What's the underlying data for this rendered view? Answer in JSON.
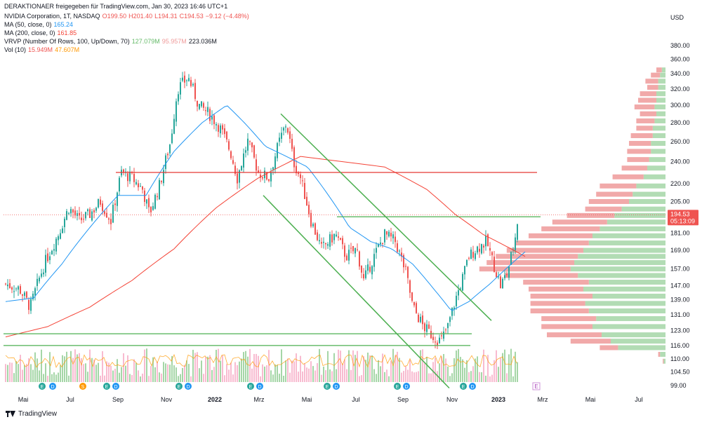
{
  "header": {
    "publisher": "DERAKTIONAER freigegeben für TradingView.com, Jan 30, 2023 16:46 UTC+1",
    "symbol": "NVIDIA Corporation, 1T, NASDAQ",
    "o": "O199.50",
    "h": "H201.40",
    "l": "L194.31",
    "c": "C194.53",
    "chg": "−9.12 (−4.48%)",
    "ma50_label": "MA (50, close, 0)",
    "ma50_val": "165.24",
    "ma200_label": "MA (200, close, 0)",
    "ma200_val": "161.85",
    "vrvp_label": "VRVP (Number Of Rows, 100, Up/Down, 70)",
    "vrvp_up": "127.079M",
    "vrvp_down": "95.957M",
    "vrvp_total": "223.036M",
    "vol_label": "Vol (10)",
    "vol_val": "15.949M",
    "vol_ma": "47.607M"
  },
  "price_tag": {
    "price": "194.53",
    "countdown": "05:13:09"
  },
  "currency": "USD",
  "footer": {
    "brand": "TradingView"
  },
  "colors": {
    "up": "#26a69a",
    "down": "#ef5350",
    "ma50": "#2196f3",
    "ma200": "#f44336",
    "trend": "#4caf50",
    "resist": "#e53935",
    "volup": "#a5d6a7",
    "voldown": "#f8bbd0"
  },
  "chart_data": {
    "type": "candlestick",
    "ylim": [
      95,
      385
    ],
    "yscale": "log",
    "yticks": [
      "99.00",
      "104.50",
      "110.00",
      "116.00",
      "123.00",
      "131.00",
      "139.00",
      "147.00",
      "157.00",
      "169.00",
      "181.00",
      "194.53",
      "205.00",
      "220.00",
      "240.00",
      "260.00",
      "280.00",
      "300.00",
      "320.00",
      "340.00",
      "360.00",
      "380.00"
    ],
    "xticks": [
      "Mai",
      "Jul",
      "Sep",
      "Nov",
      "2022",
      "Mrz",
      "Mai",
      "Jul",
      "Sep",
      "Nov",
      "2023",
      "Mrz",
      "Mai",
      "Jul"
    ],
    "close_anchors": [
      [
        0,
        148
      ],
      [
        20,
        145
      ],
      [
        35,
        135
      ],
      [
        55,
        160
      ],
      [
        75,
        180
      ],
      [
        90,
        200
      ],
      [
        105,
        190
      ],
      [
        120,
        195
      ],
      [
        135,
        205
      ],
      [
        150,
        190
      ],
      [
        165,
        230
      ],
      [
        180,
        225
      ],
      [
        195,
        215
      ],
      [
        205,
        195
      ],
      [
        220,
        220
      ],
      [
        235,
        260
      ],
      [
        245,
        320
      ],
      [
        260,
        335
      ],
      [
        275,
        300
      ],
      [
        290,
        290
      ],
      [
        305,
        275
      ],
      [
        320,
        250
      ],
      [
        330,
        225
      ],
      [
        345,
        260
      ],
      [
        360,
        230
      ],
      [
        375,
        225
      ],
      [
        390,
        260
      ],
      [
        400,
        280
      ],
      [
        410,
        240
      ],
      [
        420,
        225
      ],
      [
        435,
        190
      ],
      [
        450,
        170
      ],
      [
        470,
        180
      ],
      [
        485,
        165
      ],
      [
        500,
        170
      ],
      [
        510,
        150
      ],
      [
        525,
        165
      ],
      [
        540,
        180
      ],
      [
        555,
        175
      ],
      [
        570,
        155
      ],
      [
        580,
        135
      ],
      [
        595,
        125
      ],
      [
        610,
        120
      ],
      [
        620,
        118
      ],
      [
        630,
        125
      ],
      [
        640,
        138
      ],
      [
        650,
        150
      ],
      [
        660,
        165
      ],
      [
        670,
        170
      ],
      [
        685,
        175
      ],
      [
        695,
        160
      ],
      [
        705,
        147
      ],
      [
        715,
        155
      ],
      [
        725,
        175
      ],
      [
        732,
        200
      ],
      [
        738,
        194.53
      ]
    ],
    "ma50_anchors": [
      [
        0,
        138
      ],
      [
        40,
        140
      ],
      [
        80,
        160
      ],
      [
        120,
        185
      ],
      [
        160,
        210
      ],
      [
        200,
        210
      ],
      [
        240,
        250
      ],
      [
        280,
        280
      ],
      [
        315,
        300
      ],
      [
        340,
        280
      ],
      [
        370,
        255
      ],
      [
        400,
        245
      ],
      [
        430,
        235
      ],
      [
        460,
        210
      ],
      [
        490,
        185
      ],
      [
        520,
        175
      ],
      [
        550,
        170
      ],
      [
        580,
        160
      ],
      [
        610,
        145
      ],
      [
        635,
        133
      ],
      [
        660,
        138
      ],
      [
        690,
        148
      ],
      [
        715,
        158
      ],
      [
        740,
        168
      ]
    ],
    "ma200_anchors": [
      [
        0,
        120
      ],
      [
        60,
        125
      ],
      [
        120,
        135
      ],
      [
        180,
        150
      ],
      [
        240,
        170
      ],
      [
        300,
        200
      ],
      [
        360,
        225
      ],
      [
        420,
        245
      ],
      [
        480,
        240
      ],
      [
        540,
        235
      ],
      [
        600,
        215
      ],
      [
        640,
        195
      ],
      [
        680,
        180
      ],
      [
        720,
        170
      ],
      [
        740,
        165
      ]
    ],
    "resistance_lines": [
      {
        "y": 230,
        "x0": 165,
        "x1": 765
      },
      {
        "y": 193,
        "x0": 480,
        "x1": 770
      },
      {
        "y": 121.5,
        "x0": 5,
        "x1": 672
      },
      {
        "y": 116,
        "x0": 5,
        "x1": 670
      }
    ],
    "trend_lines": [
      {
        "x0": 400,
        "y0": 290,
        "x1": 700,
        "y1": 128
      },
      {
        "x0": 375,
        "y0": 210,
        "x1": 640,
        "y1": 98
      }
    ],
    "volume_profile": {
      "rows": [
        {
          "price": 345,
          "up": 0.02,
          "down": 0.03
        },
        {
          "price": 338,
          "up": 0.03,
          "down": 0.05
        },
        {
          "price": 330,
          "up": 0.04,
          "down": 0.07
        },
        {
          "price": 322,
          "up": 0.04,
          "down": 0.06
        },
        {
          "price": 314,
          "up": 0.05,
          "down": 0.09
        },
        {
          "price": 306,
          "up": 0.05,
          "down": 0.1
        },
        {
          "price": 298,
          "up": 0.06,
          "down": 0.11
        },
        {
          "price": 290,
          "up": 0.05,
          "down": 0.09
        },
        {
          "price": 282,
          "up": 0.06,
          "down": 0.1
        },
        {
          "price": 274,
          "up": 0.07,
          "down": 0.09
        },
        {
          "price": 266,
          "up": 0.07,
          "down": 0.12
        },
        {
          "price": 258,
          "up": 0.08,
          "down": 0.12
        },
        {
          "price": 250,
          "up": 0.08,
          "down": 0.13
        },
        {
          "price": 242,
          "up": 0.09,
          "down": 0.12
        },
        {
          "price": 234,
          "up": 0.1,
          "down": 0.14
        },
        {
          "price": 226,
          "up": 0.12,
          "down": 0.17
        },
        {
          "price": 218,
          "up": 0.16,
          "down": 0.2
        },
        {
          "price": 211,
          "up": 0.18,
          "down": 0.2
        },
        {
          "price": 205,
          "up": 0.2,
          "down": 0.22
        },
        {
          "price": 199,
          "up": 0.24,
          "down": 0.2
        },
        {
          "price": 194,
          "up": 0.28,
          "down": 0.26
        },
        {
          "price": 189,
          "up": 0.32,
          "down": 0.3
        },
        {
          "price": 184,
          "up": 0.36,
          "down": 0.32
        },
        {
          "price": 179,
          "up": 0.4,
          "down": 0.35
        },
        {
          "price": 174,
          "up": 0.42,
          "down": 0.4
        },
        {
          "price": 169,
          "up": 0.45,
          "down": 0.42
        },
        {
          "price": 165,
          "up": 0.48,
          "down": 0.45
        },
        {
          "price": 161,
          "up": 0.5,
          "down": 0.48
        },
        {
          "price": 157,
          "up": 0.52,
          "down": 0.5
        },
        {
          "price": 153,
          "up": 0.48,
          "down": 0.4
        },
        {
          "price": 149,
          "up": 0.42,
          "down": 0.36
        },
        {
          "price": 145,
          "up": 0.45,
          "down": 0.3
        },
        {
          "price": 141,
          "up": 0.4,
          "down": 0.34
        },
        {
          "price": 137,
          "up": 0.44,
          "down": 0.3
        },
        {
          "price": 133,
          "up": 0.42,
          "down": 0.32
        },
        {
          "price": 129,
          "up": 0.38,
          "down": 0.3
        },
        {
          "price": 125,
          "up": 0.4,
          "down": 0.28
        },
        {
          "price": 121,
          "up": 0.35,
          "down": 0.3
        },
        {
          "price": 118,
          "up": 0.3,
          "down": 0.22
        },
        {
          "price": 115,
          "up": 0.26,
          "down": 0.1
        },
        {
          "price": 112,
          "up": 0.03,
          "down": 0.01
        },
        {
          "price": 109,
          "up": 0.01,
          "down": 0.005
        }
      ]
    },
    "event_markers": [
      {
        "x": 60,
        "label": "E"
      },
      {
        "x": 75,
        "label": "D"
      },
      {
        "x": 118,
        "label": "S"
      },
      {
        "x": 152,
        "label": "E"
      },
      {
        "x": 165,
        "label": "D"
      },
      {
        "x": 255,
        "label": "E"
      },
      {
        "x": 268,
        "label": "D"
      },
      {
        "x": 357,
        "label": "E"
      },
      {
        "x": 370,
        "label": "D"
      },
      {
        "x": 466,
        "label": "E"
      },
      {
        "x": 479,
        "label": "D"
      },
      {
        "x": 566,
        "label": "E"
      },
      {
        "x": 579,
        "label": "D"
      },
      {
        "x": 660,
        "label": "E"
      },
      {
        "x": 673,
        "label": "D"
      },
      {
        "x": 764,
        "label": "E"
      }
    ]
  }
}
